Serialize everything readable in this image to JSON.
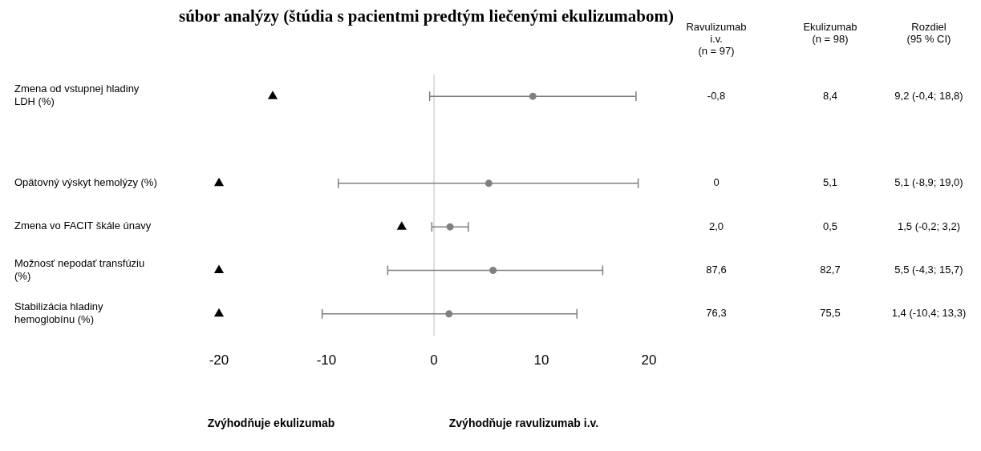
{
  "chart_data": {
    "type": "scatter",
    "title": "súbor analýzy (štúdia s pacientmi predtým liečenými ekulizumabom)",
    "orientation": "horizontal",
    "categories": [
      "Zmena od vstupnej hladiny LDH (%)",
      null,
      "Opätovný výskyt hemolýzy (%)",
      "Zmena vo FACIT škále únavy",
      "Možnosť nepodať transfúziu (%)",
      "Stabilizácia hladiny hemoglobínu (%)"
    ],
    "series": [
      {
        "type": "scatter",
        "color": "#808080",
        "marker": "circle",
        "values": [
          9.2,
          null,
          5.1,
          1.5,
          5.5,
          1.4
        ],
        "errors": [
          [
            -0.4,
            18.8
          ],
          null,
          [
            -8.9,
            19.0
          ],
          [
            -0.2,
            3.2
          ],
          [
            -4.3,
            15.7
          ],
          [
            -10.4,
            13.3
          ]
        ],
        "value_labels": [
          "9,2 (-0,4; 18,8)",
          null,
          "5,1 (-8,9; 19,0)",
          "1,5 (-0,2; 3,2)",
          "5,5 (-4,3; 15,7)",
          "1,4 (-10,4; 13,3)"
        ]
      },
      {
        "type": "scatter",
        "color": "#000000",
        "marker": "triangle",
        "values": [
          -15,
          null,
          -20,
          -3,
          -20,
          -20
        ]
      }
    ],
    "xlim": [
      -20,
      20
    ],
    "xticks": [
      -20,
      -10,
      0,
      10,
      20
    ],
    "ref_lines": [
      {
        "axis": "x",
        "value": 0,
        "color": "#c8c8c8"
      }
    ],
    "annotations": [
      "Zvýhodňuje ekulizumab",
      "Zvýhodňuje ravulizumab i.v.",
      "Ravulizumab i.v. (n = 97)",
      "Ekulizumab (n = 98)",
      "Rozdiel (95 % CI)",
      "-0,8",
      "8,4",
      "0",
      "5,1",
      "2,0",
      "0,5",
      "87,6",
      "82,7",
      "76,3",
      "75,5"
    ]
  }
}
